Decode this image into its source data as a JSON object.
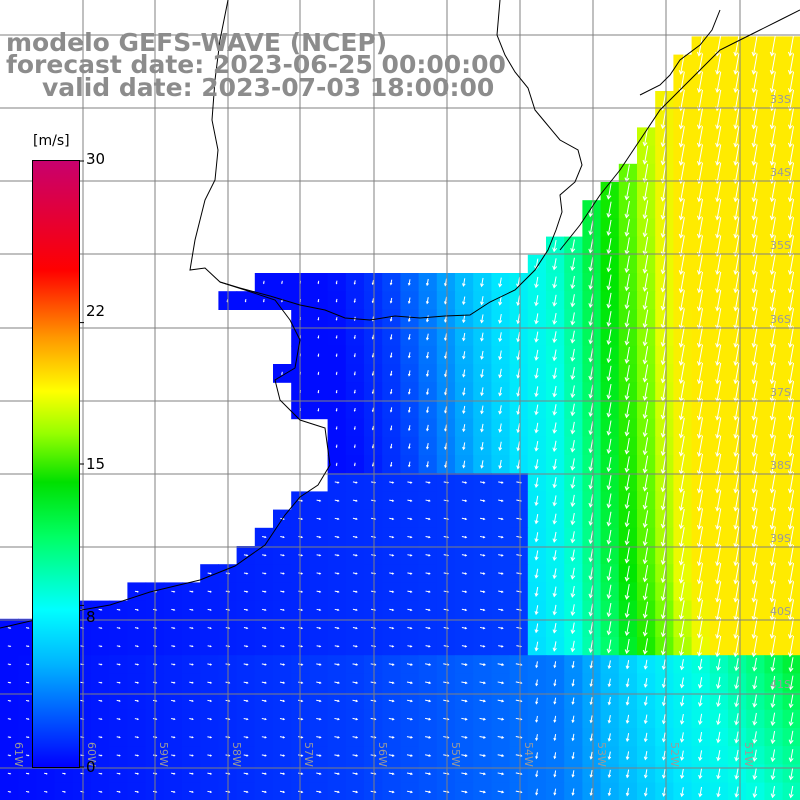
{
  "title": {
    "line1": "modelo GEFS-WAVE (NCEP)",
    "line2": "forecast date: 2023-06-25 00:00:00",
    "line3": "valid date: 2023-07-03 18:00:00"
  },
  "colorbar": {
    "unit": "[m/s]",
    "min": 0,
    "max": 30,
    "tick_labels": [
      "30",
      "22",
      "15",
      "8",
      "0"
    ],
    "tick_values": [
      30,
      22,
      15,
      8,
      0
    ]
  },
  "lat_labels": [
    "33S",
    "34S",
    "35S",
    "36S",
    "37S",
    "38S",
    "39S",
    "40S",
    "41S"
  ],
  "lon_labels": [
    "61W",
    "60W",
    "59W",
    "58W",
    "57W",
    "56W",
    "55W",
    "54W",
    "53W",
    "52W",
    "51W"
  ],
  "field": {
    "variable": "wind speed",
    "region": "Rio de la Plata / South Atlantic",
    "lat_range": [
      -41,
      -32
    ],
    "lon_range": [
      -61,
      -51
    ],
    "speed_range_shown": [
      1,
      17
    ],
    "wind_direction": "from NNE to SSW offshore, weak easterly inshore"
  },
  "colors": {
    "land": "#ffffff",
    "grid": "#808080",
    "coast": "#000000",
    "arrows": "#ffffff",
    "title_text": "#8c8c8c"
  }
}
